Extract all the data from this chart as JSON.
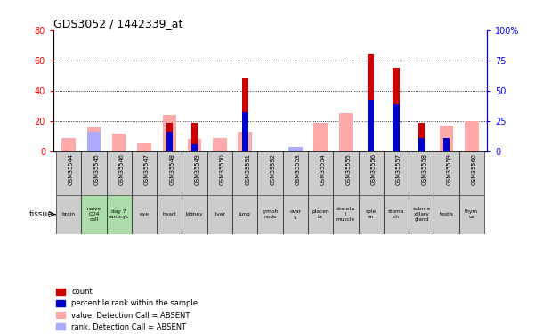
{
  "title": "GDS3052 / 1442339_at",
  "gsm_labels": [
    "GSM35544",
    "GSM35545",
    "GSM35546",
    "GSM35547",
    "GSM35548",
    "GSM35549",
    "GSM35550",
    "GSM35551",
    "GSM35552",
    "GSM35553",
    "GSM35554",
    "GSM35555",
    "GSM35556",
    "GSM35557",
    "GSM35558",
    "GSM35559",
    "GSM35560"
  ],
  "tissue_labels": [
    "brain",
    "naive\nCD4\ncell",
    "day 7\nembryc",
    "eye",
    "heart",
    "kidney",
    "liver",
    "lung",
    "lymph\nnode",
    "ovar\ny",
    "placen\nta",
    "skeleta\nl\nmuscle",
    "sple\nen",
    "stoma\nch",
    "subma\nxillary\ngland",
    "testis",
    "thym\nus"
  ],
  "tissue_green": [
    false,
    true,
    true,
    false,
    false,
    false,
    false,
    false,
    false,
    false,
    false,
    false,
    false,
    false,
    false,
    false,
    false
  ],
  "red_bars": [
    0,
    0,
    0,
    0,
    19,
    19,
    0,
    48,
    0,
    0,
    0,
    0,
    64,
    55,
    19,
    0,
    0
  ],
  "blue_bars": [
    0,
    0,
    0,
    0,
    13,
    5,
    0,
    26,
    0,
    0,
    0,
    0,
    34,
    31,
    9,
    9,
    0
  ],
  "pink_bars": [
    9,
    16,
    12,
    6,
    24,
    8,
    9,
    13,
    0,
    3,
    19,
    25,
    0,
    0,
    0,
    17,
    20
  ],
  "lightblue_bars": [
    0,
    13,
    0,
    0,
    0,
    0,
    0,
    0,
    0,
    3,
    0,
    0,
    0,
    0,
    0,
    0,
    0
  ],
  "ylim_left": [
    0,
    80
  ],
  "ylim_right": [
    0,
    100
  ],
  "yticks_left": [
    0,
    20,
    40,
    60,
    80
  ],
  "yticks_right": [
    0,
    25,
    50,
    75,
    100
  ],
  "ytick_labels_right": [
    "0",
    "25",
    "50",
    "75",
    "100%"
  ],
  "color_red": "#cc0000",
  "color_blue": "#0000cc",
  "color_pink": "#ffaaaa",
  "color_lightblue": "#aaaaff",
  "color_green_bg": "#aaddaa",
  "color_grey_bg": "#cccccc",
  "legend_items": [
    "count",
    "percentile rank within the sample",
    "value, Detection Call = ABSENT",
    "rank, Detection Call = ABSENT"
  ],
  "fig_bg": "#f0f0f0"
}
